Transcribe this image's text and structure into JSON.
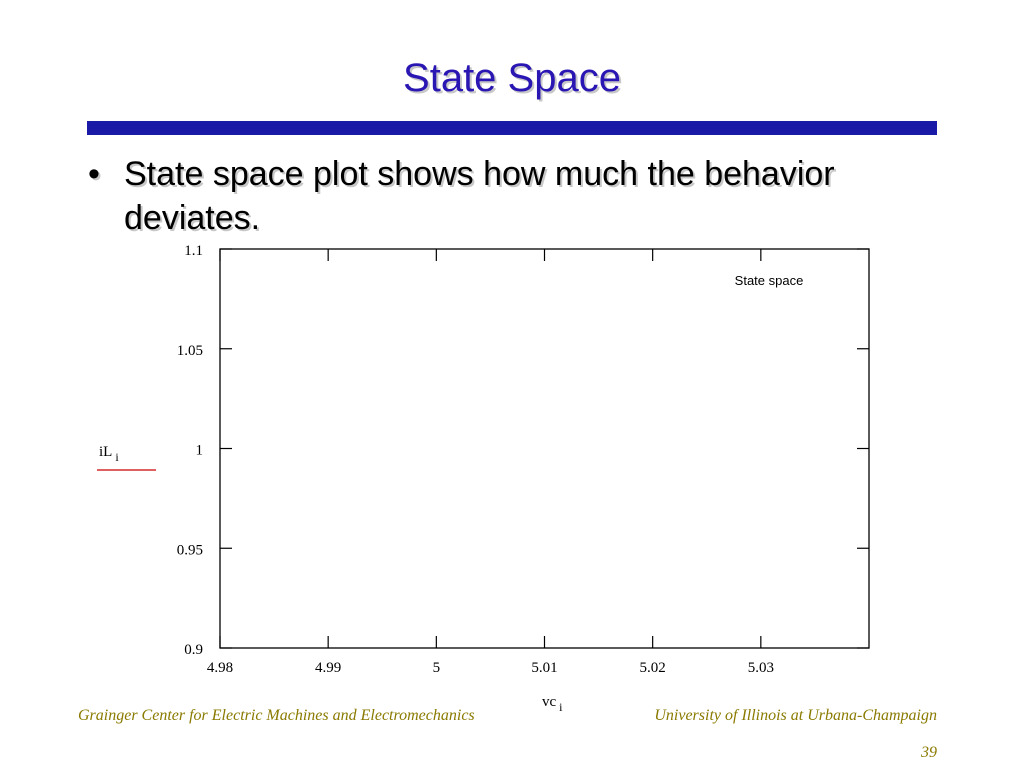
{
  "slide": {
    "title": "State Space",
    "bullet": "State space plot shows how much the behavior deviates.",
    "bullet_symbol": "•",
    "footer_left": "Grainger Center for Electric Machines and Electromechanics",
    "footer_right": "University of Illinois at Urbana-Champaign",
    "page_number": "39",
    "colors": {
      "title": "#2a16b3",
      "rule": "#1a1aa6",
      "footer": "#8a7a00",
      "series_line": "#cc0000"
    }
  },
  "chart_data": {
    "type": "line",
    "title": "",
    "xlabel": "vc",
    "xlabel_sub": "i",
    "ylabel": "iL",
    "ylabel_sub": "i",
    "xlim": [
      4.98,
      5.04
    ],
    "ylim": [
      0.9,
      1.1
    ],
    "x_ticks": [
      4.98,
      4.99,
      5,
      5.01,
      5.02,
      5.03
    ],
    "x_tick_labels": [
      "4.98",
      "4.99",
      "5",
      "5.01",
      "5.02",
      "5.03"
    ],
    "y_ticks": [
      0.9,
      0.95,
      1,
      1.05,
      1.1
    ],
    "y_tick_labels": [
      "0.9",
      "0.95",
      "1",
      "1.05",
      "1.1"
    ],
    "annotation": "State space",
    "grid": false,
    "series": []
  }
}
